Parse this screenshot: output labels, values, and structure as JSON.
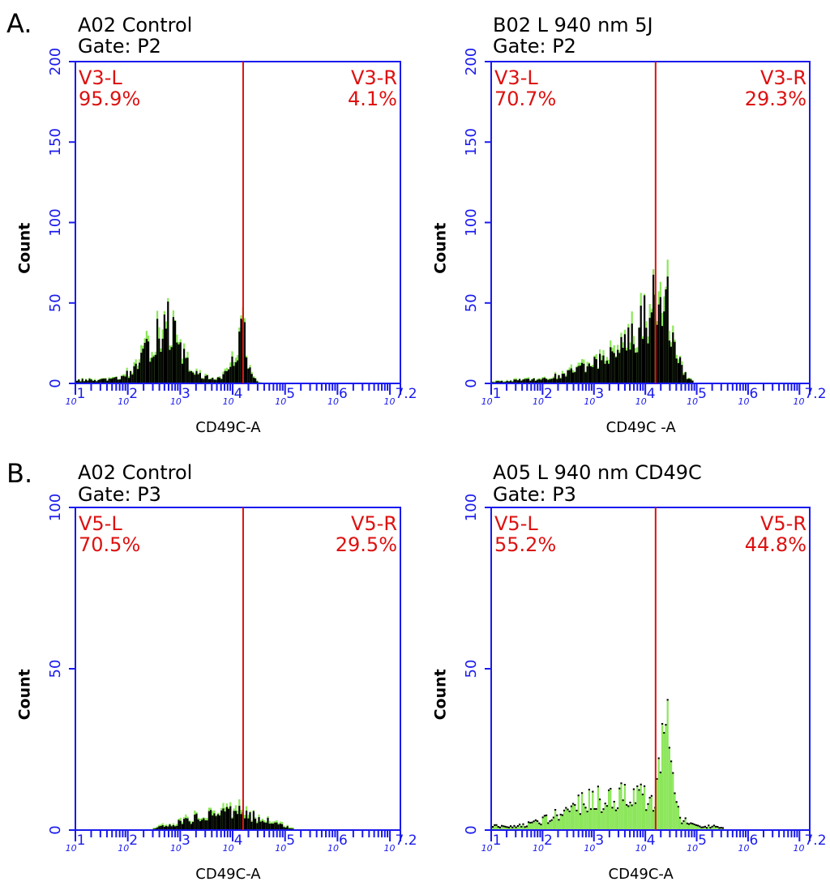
{
  "figure": {
    "section_a_label": "A.",
    "section_b_label": "B.",
    "colors": {
      "frame": "#1a1aee",
      "gate_line": "#dd1111",
      "gate_text": "#dd1111",
      "histogram_fill": "#000000",
      "histogram_overlay": "#8ce65a"
    }
  },
  "chart_data": [
    {
      "type": "histogram",
      "panel": "A-left",
      "title": "A02 Control",
      "subtitle": "Gate: P2",
      "xlabel": "CD49C-A",
      "ylabel": "Count",
      "x_scale": "log",
      "xlim": [
        1,
        7.2
      ],
      "x_ticks": [
        "10^1",
        "10^2",
        "10^3",
        "10^4",
        "10^5",
        "10^6",
        "10^7.2"
      ],
      "ylim": [
        0,
        200
      ],
      "y_ticks": [
        0,
        50,
        100,
        150,
        200
      ],
      "gate_x": 4.2,
      "gate_left": {
        "name": "V3-L",
        "percent": "95.9%"
      },
      "gate_right": {
        "name": "V3-R",
        "percent": "4.1%"
      },
      "primary": "black",
      "profile": [
        [
          1.0,
          2
        ],
        [
          1.5,
          2
        ],
        [
          1.8,
          3
        ],
        [
          2.0,
          6
        ],
        [
          2.2,
          12
        ],
        [
          2.4,
          22
        ],
        [
          2.55,
          32
        ],
        [
          2.7,
          40
        ],
        [
          2.85,
          30
        ],
        [
          3.0,
          18
        ],
        [
          3.2,
          8
        ],
        [
          3.4,
          4
        ],
        [
          3.6,
          3
        ],
        [
          3.8,
          4
        ],
        [
          4.0,
          14
        ],
        [
          4.1,
          26
        ],
        [
          4.2,
          32
        ],
        [
          4.28,
          16
        ],
        [
          4.35,
          5
        ],
        [
          4.45,
          1
        ],
        [
          4.6,
          0
        ]
      ]
    },
    {
      "type": "histogram",
      "panel": "A-right",
      "title": "B02 L 940 nm 5J",
      "subtitle": "Gate: P2",
      "xlabel": "CD49C -A",
      "ylabel": "Count",
      "x_scale": "log",
      "xlim": [
        1,
        7.2
      ],
      "x_ticks": [
        "10^1",
        "10^2",
        "10^3",
        "10^4",
        "10^5",
        "10^6",
        "10^7.2"
      ],
      "ylim": [
        0,
        200
      ],
      "y_ticks": [
        0,
        50,
        100,
        150,
        200
      ],
      "gate_x": 4.2,
      "gate_left": {
        "name": "V3-L",
        "percent": "70.7%"
      },
      "gate_right": {
        "name": "V3-R",
        "percent": "29.3%"
      },
      "primary": "black",
      "profile": [
        [
          1.0,
          1
        ],
        [
          1.6,
          2
        ],
        [
          2.0,
          3
        ],
        [
          2.4,
          5
        ],
        [
          2.8,
          10
        ],
        [
          3.2,
          16
        ],
        [
          3.5,
          22
        ],
        [
          3.8,
          32
        ],
        [
          4.0,
          42
        ],
        [
          4.15,
          55
        ],
        [
          4.25,
          52
        ],
        [
          4.4,
          48
        ],
        [
          4.55,
          30
        ],
        [
          4.7,
          10
        ],
        [
          4.8,
          4
        ],
        [
          4.95,
          0
        ]
      ]
    },
    {
      "type": "histogram",
      "panel": "B-left",
      "title": "A02 Control",
      "subtitle": "Gate: P3",
      "xlabel": "CD49C-A",
      "ylabel": "Count",
      "x_scale": "log",
      "xlim": [
        1,
        7.2
      ],
      "x_ticks": [
        "10^1",
        "10^2",
        "10^3",
        "10^4",
        "10^5",
        "10^6",
        "10^7.2"
      ],
      "ylim": [
        0,
        100
      ],
      "y_ticks": [
        0,
        50,
        100
      ],
      "gate_x": 4.2,
      "gate_left": {
        "name": "V5-L",
        "percent": "70.5%"
      },
      "gate_right": {
        "name": "V5-R",
        "percent": "29.5%"
      },
      "primary": "black",
      "profile": [
        [
          2.4,
          0
        ],
        [
          2.6,
          1
        ],
        [
          2.9,
          2
        ],
        [
          3.2,
          3
        ],
        [
          3.5,
          5
        ],
        [
          3.8,
          6
        ],
        [
          4.0,
          6
        ],
        [
          4.2,
          5
        ],
        [
          4.4,
          4
        ],
        [
          4.6,
          3
        ],
        [
          4.8,
          2
        ],
        [
          5.0,
          1
        ],
        [
          5.2,
          0
        ]
      ]
    },
    {
      "type": "histogram",
      "panel": "B-right",
      "title": "A05 L 940 nm CD49C",
      "subtitle": "Gate: P3",
      "xlabel": "CD49C-A",
      "ylabel": "Count",
      "x_scale": "log",
      "xlim": [
        1,
        7.2
      ],
      "x_ticks": [
        "10^1",
        "10^2",
        "10^3",
        "10^4",
        "10^5",
        "10^6",
        "10^7.2"
      ],
      "ylim": [
        0,
        100
      ],
      "y_ticks": [
        0,
        50,
        100
      ],
      "gate_x": 4.2,
      "gate_left": {
        "name": "V5-L",
        "percent": "55.2%"
      },
      "gate_right": {
        "name": "V5-R",
        "percent": "44.8%"
      },
      "primary": "green",
      "profile": [
        [
          1.0,
          1
        ],
        [
          1.5,
          1
        ],
        [
          1.8,
          2
        ],
        [
          2.0,
          3
        ],
        [
          2.3,
          5
        ],
        [
          2.6,
          7
        ],
        [
          2.9,
          9
        ],
        [
          3.2,
          10
        ],
        [
          3.5,
          11
        ],
        [
          3.8,
          11
        ],
        [
          4.0,
          10
        ],
        [
          4.15,
          8
        ],
        [
          4.25,
          20
        ],
        [
          4.32,
          50
        ],
        [
          4.38,
          40
        ],
        [
          4.45,
          30
        ],
        [
          4.55,
          10
        ],
        [
          4.65,
          4
        ],
        [
          4.8,
          2
        ],
        [
          5.0,
          1
        ],
        [
          5.3,
          1
        ],
        [
          5.6,
          0
        ]
      ]
    }
  ]
}
